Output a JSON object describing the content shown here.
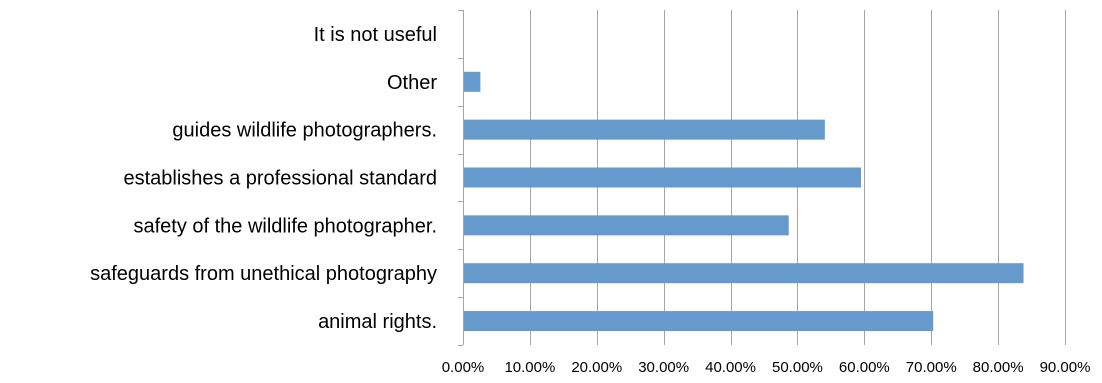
{
  "chart_data": {
    "type": "bar",
    "orientation": "horizontal",
    "categories": [
      "It is not useful",
      "Other",
      "guides wildlife photographers.",
      "establishes a professional standard",
      "safety of the wildlife photographer.",
      "safeguards from unethical photography",
      "animal rights."
    ],
    "series": [
      {
        "values": [
          0.0,
          2.6,
          54.1,
          59.5,
          48.7,
          83.8,
          70.3
        ]
      }
    ],
    "xlim": [
      0,
      90
    ],
    "xticks": [
      "0.00%",
      "10.00%",
      "20.00%",
      "30.00%",
      "40.00%",
      "50.00%",
      "60.00%",
      "70.00%",
      "80.00%",
      "90.00%"
    ],
    "grid": "vertical",
    "legend": "none",
    "bar_color": "#6699cc",
    "grid_color": "#a6a6a6"
  }
}
